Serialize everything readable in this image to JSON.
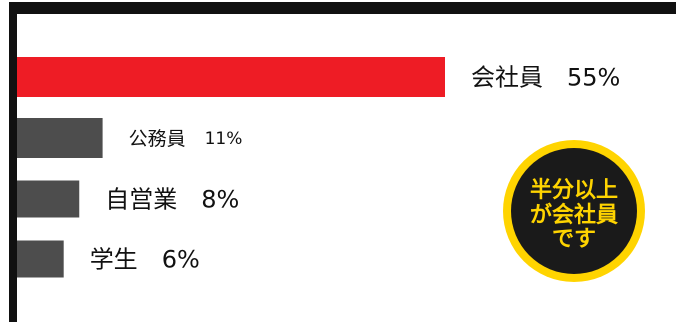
{
  "chart_data": {
    "type": "bar",
    "orientation": "horizontal",
    "categories": [
      "会社員",
      "公務員",
      "自営業",
      "学生"
    ],
    "values": [
      55,
      11,
      8,
      6
    ],
    "value_labels": [
      "55%",
      "11%",
      "8%",
      "6%"
    ],
    "unit": "%",
    "title": "",
    "xlabel": "",
    "ylabel": "",
    "grid": false,
    "colors": {
      "highlight": "#ee1c25",
      "bar": "#4d4d4d",
      "axis": "#111111"
    }
  },
  "badge": {
    "lines": [
      "半分以上",
      "が会社員",
      "です"
    ],
    "fill": "#1a1a1a",
    "ring": "#ffd400",
    "text_color": "#ffd400"
  }
}
